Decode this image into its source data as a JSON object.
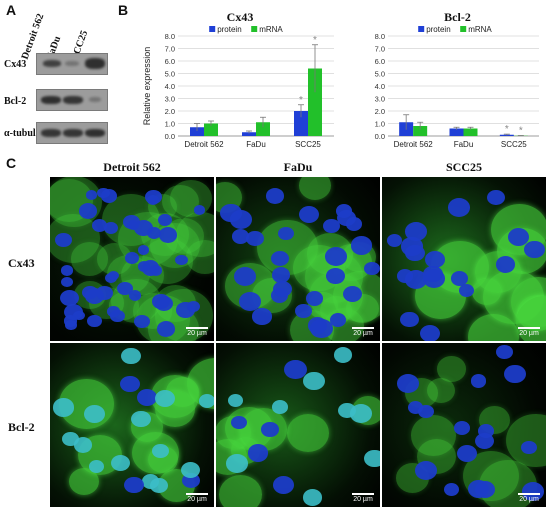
{
  "panels": {
    "a": "A",
    "b": "B",
    "c": "C"
  },
  "western_blot": {
    "lanes": [
      "Detroit 562",
      "FaDu",
      "SCC25"
    ],
    "rows": [
      "Cx43",
      "Bcl-2",
      "α-tubulin"
    ]
  },
  "colors": {
    "protein": "#1f3fd6",
    "mrna": "#22c02a",
    "green_stain": "#3ad83a",
    "nuclei": "#1c3cc8"
  },
  "chart_data": [
    {
      "type": "bar",
      "title": "Cx43",
      "ylabel": "Relative expression",
      "categories": [
        "Detroit 562",
        "FaDu",
        "SCC25"
      ],
      "ylim": [
        0,
        8
      ],
      "yticks": [
        "0.0",
        "1.0",
        "2.0",
        "3.0",
        "4.0",
        "5.0",
        "6.0",
        "7.0",
        "8.0"
      ],
      "legend": "top",
      "series": [
        {
          "name": "protein",
          "values": [
            0.7,
            0.3,
            2.0
          ],
          "errors": [
            0.3,
            0.1,
            0.5
          ]
        },
        {
          "name": "mRNA",
          "values": [
            1.0,
            1.1,
            5.4
          ],
          "errors": [
            0.2,
            0.4,
            1.9
          ]
        }
      ],
      "annotations": [
        {
          "category": "SCC25",
          "series": "protein",
          "text": "*"
        },
        {
          "category": "SCC25",
          "series": "mRNA",
          "text": "*"
        }
      ]
    },
    {
      "type": "bar",
      "title": "Bcl-2",
      "ylabel": "",
      "categories": [
        "Detroit 562",
        "FaDu",
        "SCC25"
      ],
      "ylim": [
        0,
        8
      ],
      "yticks": [
        "0.0",
        "1.0",
        "2.0",
        "3.0",
        "4.0",
        "5.0",
        "6.0",
        "7.0",
        "8.0"
      ],
      "legend": "top",
      "series": [
        {
          "name": "protein",
          "values": [
            1.1,
            0.6,
            0.1
          ],
          "errors": [
            0.6,
            0.1,
            0.05
          ]
        },
        {
          "name": "mRNA",
          "values": [
            0.8,
            0.6,
            0.02
          ],
          "errors": [
            0.3,
            0.1,
            0.02
          ]
        }
      ],
      "annotations": [
        {
          "category": "SCC25",
          "series": "protein",
          "text": "*"
        },
        {
          "category": "SCC25",
          "series": "mRNA",
          "text": "*"
        }
      ]
    }
  ],
  "microscopy": {
    "columns": [
      "Detroit 562",
      "FaDu",
      "SCC25"
    ],
    "rows": [
      "Cx43",
      "Bcl-2"
    ],
    "scale_label": "20 µm"
  }
}
